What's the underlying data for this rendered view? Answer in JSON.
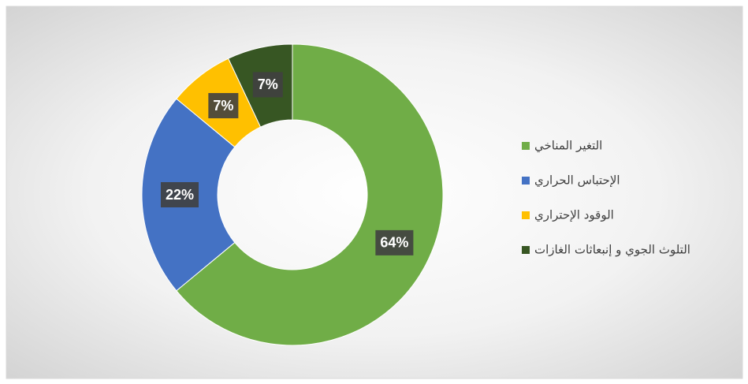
{
  "chart_data": {
    "type": "donut",
    "categories": [
      "التغير المناخي",
      "الإحتباس الحراري",
      "الوقود الإحتراري",
      "التلوث الجوي و إنبعاثات الغازات"
    ],
    "values": [
      64,
      22,
      7,
      7
    ],
    "value_labels": [
      "64%",
      "22%",
      "7%",
      "7%"
    ],
    "colors": [
      "#70ad47",
      "#4472c4",
      "#ffc000",
      "#375623"
    ],
    "legend": "right"
  }
}
